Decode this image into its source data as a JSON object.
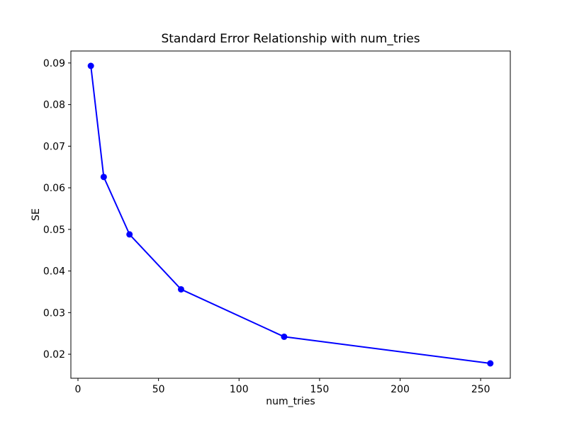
{
  "figure": {
    "background_color": "#ffffff",
    "text_color": "#000000"
  },
  "chart_data": {
    "type": "line",
    "title": "Standard Error Relationship with num_tries",
    "xlabel": "num_tries",
    "ylabel": "SE",
    "x": [
      8,
      16,
      32,
      64,
      128,
      256
    ],
    "y": [
      0.0893,
      0.0626,
      0.0488,
      0.0356,
      0.0242,
      0.0178
    ],
    "xlim": [
      -4.4,
      268.4
    ],
    "ylim": [
      0.014225,
      0.092875
    ],
    "x_ticks": [
      0,
      50,
      100,
      150,
      200,
      250
    ],
    "y_ticks": [
      0.02,
      0.03,
      0.04,
      0.05,
      0.06,
      0.07,
      0.08,
      0.09
    ],
    "y_tick_decimals": 2,
    "grid": false,
    "legend": "none",
    "line_color": "#0000ff",
    "marker": "circle",
    "frame_color": "#000000"
  }
}
